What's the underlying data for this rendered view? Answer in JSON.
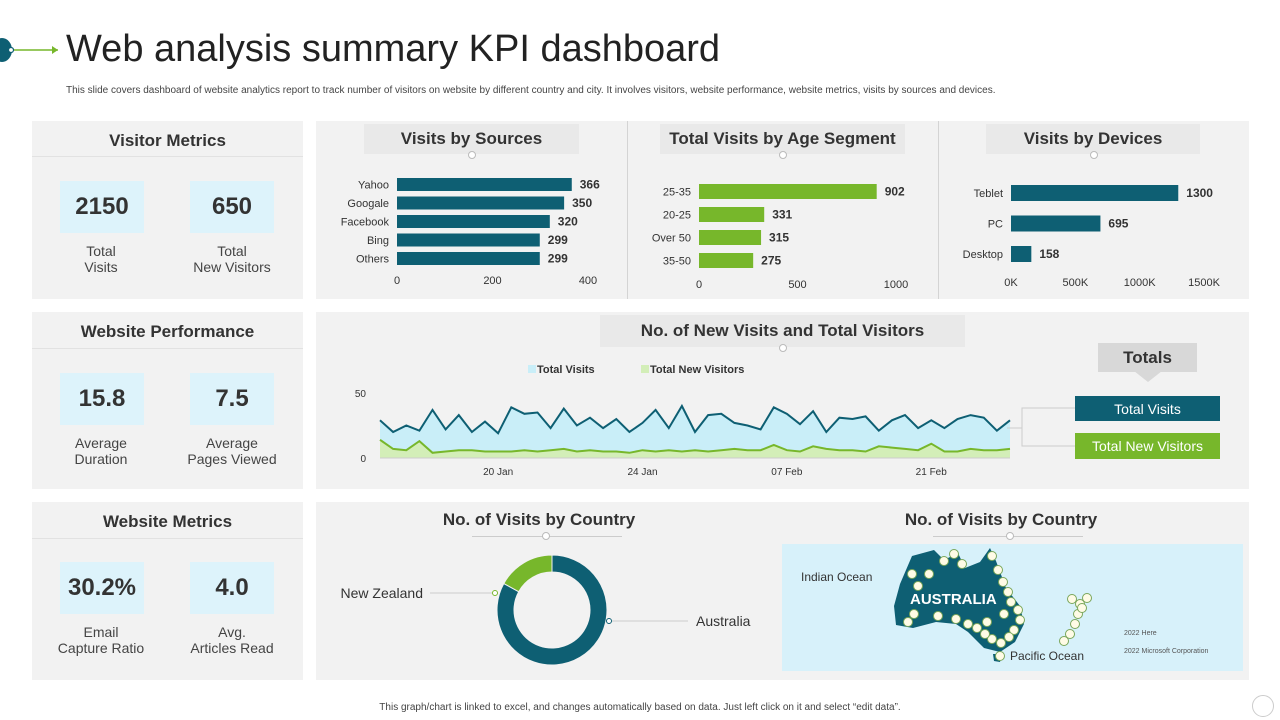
{
  "header": {
    "title": "Web analysis summary KPI dashboard",
    "subtitle": "This slide covers dashboard of website analytics report to track number of visitors on website by different country and city. It involves visitors, website performance, website metrics, visits by sources and devices.",
    "footer": "This graph/chart is linked to excel, and changes automatically based on data. Just left click on it and select “edit data”."
  },
  "colors": {
    "teal": "#0e5f73",
    "green": "#77b72b",
    "light_blue": "#ddf3fb",
    "panel": "#f2f2f2"
  },
  "visitor_metrics": {
    "title": "Visitor Metrics",
    "kpis": [
      {
        "value": "2150",
        "label_line1": "Total",
        "label_line2": "Visits"
      },
      {
        "value": "650",
        "label_line1": "Total",
        "label_line2": "New Visitors"
      }
    ]
  },
  "website_performance": {
    "title": "Website Performance",
    "kpis": [
      {
        "value": "15.8",
        "label_line1": "Average",
        "label_line2": "Duration"
      },
      {
        "value": "7.5",
        "label_line1": "Average",
        "label_line2": "Pages Viewed"
      }
    ]
  },
  "website_metrics": {
    "title": "Website Metrics",
    "kpis": [
      {
        "value": "30.2%",
        "label_line1": "Email",
        "label_line2": "Capture Ratio"
      },
      {
        "value": "4.0",
        "label_line1": "Avg.",
        "label_line2": "Articles Read"
      }
    ]
  },
  "totals": {
    "title": "Totals",
    "total_visits": "Total Visits",
    "total_new_visitors": "Total New Visitors"
  },
  "map": {
    "title": "No. of Visits by Country",
    "country_label": "AUSTRALIA",
    "ocean_west": "Indian Ocean",
    "ocean_east": "Pacific Ocean",
    "credit_1": "2022 Here",
    "credit_2": "2022 Microsoft Corporation"
  },
  "chart_data": [
    {
      "id": "sources",
      "type": "bar",
      "orientation": "horizontal",
      "title": "Visits by Sources",
      "categories": [
        "Yahoo",
        "Googale",
        "Facebook",
        "Bing",
        "Others"
      ],
      "values": [
        366,
        350,
        320,
        299,
        299
      ],
      "xlim": [
        0,
        400
      ],
      "ticks": [
        0,
        200,
        400
      ],
      "tick_labels": [
        "0",
        "200",
        "400"
      ],
      "color": "#0e5f73"
    },
    {
      "id": "age",
      "type": "bar",
      "orientation": "horizontal",
      "title": "Total Visits by Age Segment",
      "categories": [
        "25-35",
        "20-25",
        "Over 50",
        "35-50"
      ],
      "values": [
        902,
        331,
        315,
        275
      ],
      "xlim": [
        0,
        1000
      ],
      "ticks": [
        0,
        500,
        1000
      ],
      "tick_labels": [
        "0",
        "500",
        "1000"
      ],
      "color": "#77b72b"
    },
    {
      "id": "devices",
      "type": "bar",
      "orientation": "horizontal",
      "title": "Visits by Devices",
      "categories": [
        "Teblet",
        "PC",
        "Desktop"
      ],
      "values": [
        1300,
        695,
        158
      ],
      "xlim": [
        0,
        1500
      ],
      "ticks": [
        0,
        500,
        1000,
        1500
      ],
      "tick_labels": [
        "0K",
        "500K",
        "1000K",
        "1500K"
      ],
      "color": "#0e5f73"
    },
    {
      "id": "visits_line",
      "type": "area",
      "title": "No. of New Visits and Total Visitors",
      "ylim": [
        0,
        50
      ],
      "yticks": [
        0,
        50
      ],
      "ytick_labels": [
        "0",
        "50"
      ],
      "xtick_labels": [
        "20 Jan",
        "24 Jan",
        "07 Feb",
        "21 Feb"
      ],
      "xtick_index": [
        9,
        20,
        31,
        42
      ],
      "series": [
        {
          "name": "Total Visits",
          "color": "#c9eef8",
          "line": "#0e5f73",
          "values": [
            29,
            20,
            25,
            21,
            37,
            22,
            33,
            20,
            28,
            19,
            39,
            34,
            35,
            23,
            38,
            25,
            31,
            23,
            30,
            20,
            27,
            37,
            23,
            40,
            20,
            33,
            34,
            27,
            25,
            22,
            39,
            34,
            26,
            36,
            20,
            31,
            30,
            32,
            21,
            29,
            33,
            23,
            29,
            23,
            30,
            33,
            31,
            21,
            29
          ]
        },
        {
          "name": "Total New Visitors",
          "color": "#d3eeb8",
          "line": "#77b72b",
          "values": [
            14,
            7,
            6,
            13,
            4,
            5,
            6,
            6,
            5,
            5,
            5,
            6,
            5,
            6,
            7,
            5,
            6,
            5,
            5,
            4,
            6,
            5,
            6,
            5,
            6,
            5,
            6,
            7,
            6,
            6,
            10,
            6,
            5,
            9,
            7,
            6,
            6,
            5,
            9,
            8,
            7,
            6,
            11,
            5,
            5,
            7,
            6,
            6,
            7
          ]
        }
      ]
    },
    {
      "id": "country_donut",
      "type": "pie",
      "donut": true,
      "title": "No. of Visits by Country",
      "labels": [
        "Australia",
        "New Zealand"
      ],
      "values": [
        83,
        17
      ],
      "colors": [
        "#0e5f73",
        "#77b72b"
      ]
    }
  ]
}
